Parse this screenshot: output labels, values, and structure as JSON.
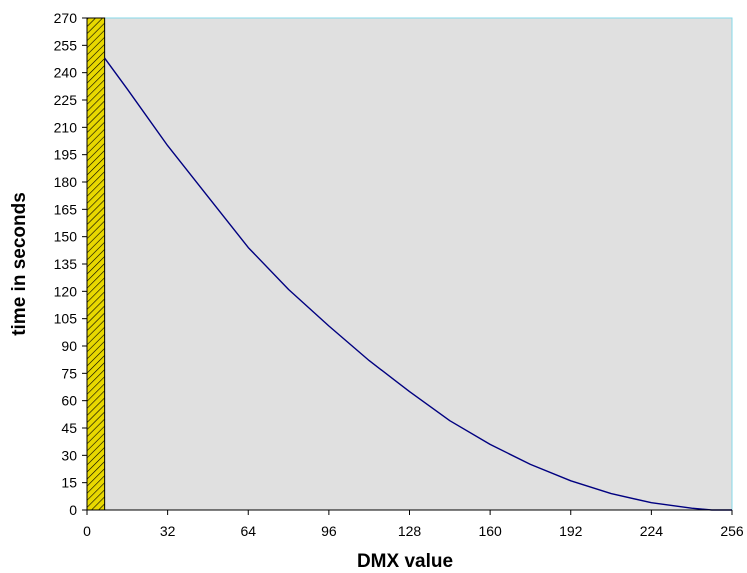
{
  "chart_data": {
    "type": "line",
    "title": "",
    "xlabel": "DMX value",
    "ylabel": "time in seconds",
    "xlim": [
      0,
      256
    ],
    "ylim": [
      0,
      270
    ],
    "x_ticks": [
      0,
      32,
      64,
      96,
      128,
      160,
      192,
      224,
      256
    ],
    "y_ticks": [
      0,
      15,
      30,
      45,
      60,
      75,
      90,
      105,
      120,
      135,
      150,
      165,
      180,
      195,
      210,
      225,
      240,
      255,
      270
    ],
    "grid": false,
    "legend": "none",
    "highlight_band": {
      "x_range": [
        0,
        7
      ],
      "y_range": [
        0,
        270
      ],
      "fill": "#e8d800",
      "pattern": "diagonal-hatch"
    },
    "series": [
      {
        "color": "#000080",
        "x": [
          7,
          16,
          32,
          48,
          64,
          80,
          96,
          112,
          128,
          144,
          160,
          176,
          192,
          208,
          224,
          240,
          248,
          256
        ],
        "values": [
          248,
          231,
          200,
          172,
          144,
          121,
          101,
          82,
          65,
          49,
          36,
          25,
          16,
          9,
          4,
          1,
          0,
          0
        ]
      }
    ],
    "colors": {
      "plot_background": "#e0e0e0",
      "plot_border": "#86d8e8",
      "axis_line": "#000000",
      "line": "#000080"
    }
  }
}
